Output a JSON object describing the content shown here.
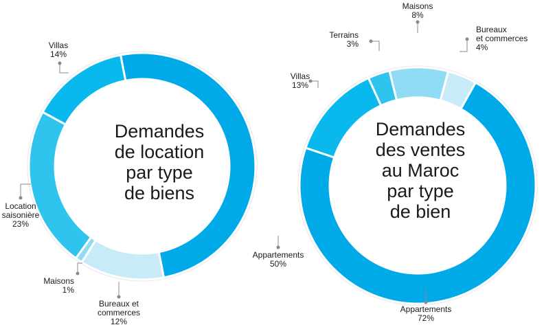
{
  "chart_data": [
    {
      "type": "pie",
      "title": [
        "Demandes",
        "de location",
        "par type",
        "de biens"
      ],
      "slices": [
        {
          "label": [
            "Appartements",
            "50%"
          ],
          "value": 50,
          "color": "#00aae8"
        },
        {
          "label": [
            "Bureaux et",
            "commerces",
            "12%"
          ],
          "value": 12,
          "color": "#c9ebf8"
        },
        {
          "label": [
            "Maisons",
            "1%"
          ],
          "value": 1,
          "color": "#8fdcf4"
        },
        {
          "label": [
            "Location",
            "saisonière",
            "23%"
          ],
          "value": 23,
          "color": "#2ec4ee"
        },
        {
          "label": [
            "Villas",
            "14%"
          ],
          "value": 14,
          "color": "#09b8ec"
        }
      ]
    },
    {
      "type": "pie",
      "title": [
        "Demandes",
        "des ventes",
        "au Maroc",
        "par type",
        "de bien"
      ],
      "slices": [
        {
          "label": [
            "Bureaux",
            "et commerces",
            "4%"
          ],
          "value": 4,
          "color": "#c9ebf8"
        },
        {
          "label": [
            "Appartements",
            "72%"
          ],
          "value": 72,
          "color": "#00aae8"
        },
        {
          "label": [
            "Villas",
            "13%"
          ],
          "value": 13,
          "color": "#09b8ec"
        },
        {
          "label": [
            "Terrains",
            "3%"
          ],
          "value": 3,
          "color": "#2ec4ee"
        },
        {
          "label": [
            "Maisons",
            "8%"
          ],
          "value": 8,
          "color": "#8fdcf4"
        }
      ]
    }
  ]
}
